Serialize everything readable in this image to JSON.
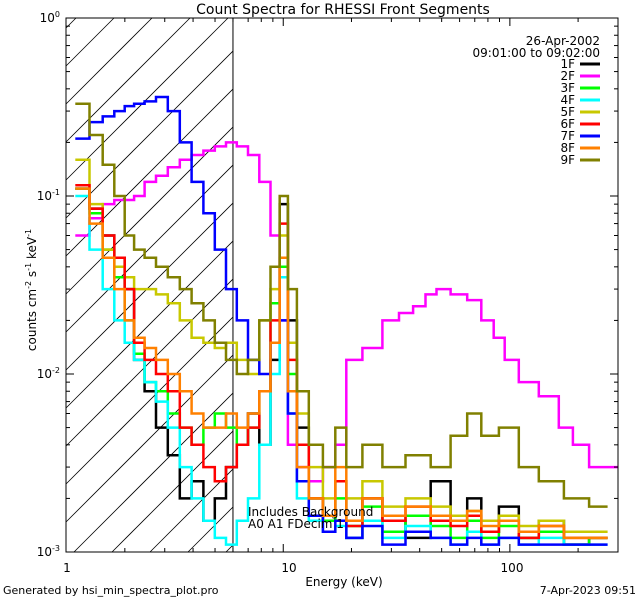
{
  "chart_data": {
    "type": "line",
    "title": "Count Spectra for RHESSI Front Segments",
    "xlabel": "Energy (keV)",
    "ylabel": "counts cm-2 s-1 keV-1",
    "xscale": "log",
    "yscale": "log",
    "xlim": [
      1.1,
      300
    ],
    "ylim": [
      0.001,
      1
    ],
    "x_tick_labels": [
      "1",
      "10",
      "100"
    ],
    "y_tick_labels": [
      "10^-3",
      "10^-2",
      "10^-1",
      "10^0"
    ],
    "date": "26-Apr-2002",
    "time_range": "09:01:00 to 09:02:00",
    "attenuator_boundary_kev": 6,
    "annotation_line1": "Includes Background",
    "annotation_line2": "A0 A1 FDecim 1",
    "series": [
      {
        "name": "1F",
        "color": "#000000",
        "x": [
          1.3,
          1.5,
          1.7,
          1.9,
          2.1,
          2.3,
          2.6,
          2.9,
          3.3,
          3.7,
          4.2,
          4.7,
          5.3,
          5.9,
          6.6,
          7.4,
          8.3,
          9.3,
          10,
          11,
          12,
          14,
          16,
          18,
          20,
          25,
          30,
          40,
          50,
          60,
          70,
          80,
          100,
          120,
          150,
          200,
          250
        ],
        "y": [
          0.11,
          0.085,
          0.06,
          0.045,
          0.03,
          0.012,
          0.008,
          0.005,
          0.0035,
          0.002,
          0.0025,
          0.0015,
          0.002,
          0.003,
          0.004,
          0.006,
          0.004,
          0.012,
          0.09,
          0.02,
          0.005,
          0.002,
          0.0015,
          0.0025,
          0.0012,
          0.002,
          0.0015,
          0.0012,
          0.0025,
          0.0015,
          0.002,
          0.0013,
          0.0018,
          0.0012,
          0.0015,
          0.0011,
          0.0012
        ]
      },
      {
        "name": "2F",
        "color": "#ff00ff",
        "x": [
          1.3,
          1.5,
          1.7,
          1.9,
          2.1,
          2.3,
          2.6,
          2.9,
          3.3,
          3.7,
          4.2,
          4.7,
          5.3,
          5.9,
          6.6,
          7.4,
          8.3,
          9.3,
          10,
          11,
          12,
          14,
          16,
          18,
          20,
          25,
          30,
          35,
          40,
          45,
          50,
          60,
          70,
          80,
          90,
          100,
          120,
          150,
          180,
          200,
          250,
          300
        ],
        "y": [
          0.06,
          0.075,
          0.09,
          0.095,
          0.095,
          0.1,
          0.12,
          0.13,
          0.145,
          0.16,
          0.17,
          0.18,
          0.19,
          0.2,
          0.19,
          0.17,
          0.12,
          0.06,
          0.02,
          0.004,
          0.003,
          0.0025,
          0.003,
          0.004,
          0.012,
          0.014,
          0.02,
          0.022,
          0.024,
          0.028,
          0.03,
          0.028,
          0.026,
          0.02,
          0.016,
          0.012,
          0.009,
          0.0075,
          0.005,
          0.004,
          0.003,
          0.003
        ]
      },
      {
        "name": "3F",
        "color": "#00ff00",
        "x": [
          1.3,
          1.5,
          1.7,
          1.9,
          2.1,
          2.3,
          2.6,
          2.9,
          3.3,
          3.7,
          4.2,
          4.7,
          5.3,
          5.9,
          6.6,
          7.4,
          8.3,
          9.3,
          10,
          11,
          12,
          14,
          16,
          18,
          20,
          25,
          30,
          40,
          50,
          60,
          70,
          80,
          100,
          120,
          150,
          200,
          250
        ],
        "y": [
          0.11,
          0.08,
          0.05,
          0.035,
          0.02,
          0.013,
          0.009,
          0.008,
          0.006,
          0.005,
          0.004,
          0.005,
          0.006,
          0.005,
          0.004,
          0.005,
          0.008,
          0.025,
          0.04,
          0.01,
          0.004,
          0.002,
          0.0015,
          0.002,
          0.0014,
          0.0018,
          0.0013,
          0.0016,
          0.0014,
          0.0012,
          0.0015,
          0.0012,
          0.0014,
          0.0012,
          0.0013,
          0.0011,
          0.0012
        ]
      },
      {
        "name": "4F",
        "color": "#00ffff",
        "x": [
          1.3,
          1.5,
          1.7,
          1.9,
          2.1,
          2.3,
          2.6,
          2.9,
          3.3,
          3.7,
          4.2,
          4.7,
          5.3,
          5.9,
          6.6,
          7.4,
          8.3,
          9.3,
          10,
          11,
          12,
          14,
          16,
          18,
          20,
          25,
          30,
          40,
          50,
          60,
          70,
          80,
          100,
          120,
          150,
          200,
          250
        ],
        "y": [
          0.1,
          0.05,
          0.03,
          0.02,
          0.015,
          0.012,
          0.009,
          0.007,
          0.005,
          0.003,
          0.002,
          0.0015,
          0.0012,
          0.0011,
          0.0015,
          0.002,
          0.004,
          0.01,
          0.035,
          0.006,
          0.002,
          0.0015,
          0.0013,
          0.0014,
          0.0012,
          0.0015,
          0.0012,
          0.0014,
          0.0012,
          0.0011,
          0.0013,
          0.0011,
          0.0012,
          0.0011,
          0.0012,
          0.0011,
          0.0011
        ]
      },
      {
        "name": "5F",
        "color": "#c8c800",
        "x": [
          1.3,
          1.5,
          1.7,
          1.9,
          2.1,
          2.3,
          2.6,
          2.9,
          3.3,
          3.7,
          4.2,
          4.7,
          5.3,
          5.9,
          6.6,
          7.4,
          8.3,
          9.3,
          10,
          11,
          12,
          14,
          16,
          18,
          20,
          25,
          30,
          40,
          50,
          60,
          70,
          80,
          100,
          120,
          150,
          200,
          250
        ],
        "y": [
          0.16,
          0.09,
          0.05,
          0.04,
          0.035,
          0.03,
          0.03,
          0.028,
          0.025,
          0.02,
          0.016,
          0.015,
          0.014,
          0.015,
          0.012,
          0.01,
          0.02,
          0.03,
          0.06,
          0.015,
          0.006,
          0.003,
          0.002,
          0.0025,
          0.002,
          0.0025,
          0.0018,
          0.002,
          0.0018,
          0.0016,
          0.0017,
          0.0015,
          0.0016,
          0.0014,
          0.0015,
          0.0013,
          0.0013
        ]
      },
      {
        "name": "6F",
        "color": "#ff0000",
        "x": [
          1.3,
          1.5,
          1.7,
          1.9,
          2.1,
          2.3,
          2.6,
          2.9,
          3.3,
          3.7,
          4.2,
          4.7,
          5.3,
          5.9,
          6.6,
          7.4,
          8.3,
          9.3,
          10,
          11,
          12,
          14,
          16,
          18,
          20,
          25,
          30,
          40,
          50,
          60,
          70,
          80,
          100,
          120,
          150,
          200,
          250
        ],
        "y": [
          0.115,
          0.085,
          0.06,
          0.045,
          0.03,
          0.015,
          0.012,
          0.01,
          0.008,
          0.005,
          0.004,
          0.003,
          0.0025,
          0.003,
          0.004,
          0.005,
          0.008,
          0.02,
          0.07,
          0.012,
          0.004,
          0.002,
          0.0016,
          0.0025,
          0.0014,
          0.002,
          0.0015,
          0.0018,
          0.0015,
          0.0014,
          0.0016,
          0.0013,
          0.0015,
          0.0012,
          0.0014,
          0.0012,
          0.0012
        ]
      },
      {
        "name": "7F",
        "color": "#0000ff",
        "x": [
          1.3,
          1.5,
          1.7,
          1.9,
          2.1,
          2.3,
          2.6,
          2.9,
          3.3,
          3.7,
          4.2,
          4.7,
          5.3,
          5.9,
          6.6,
          7.4,
          8.3,
          9.3,
          10,
          11,
          12,
          14,
          16,
          18,
          20,
          25,
          30,
          40,
          50,
          60,
          70,
          80,
          100,
          120,
          150,
          200,
          250
        ],
        "y": [
          0.21,
          0.26,
          0.28,
          0.3,
          0.32,
          0.33,
          0.34,
          0.36,
          0.3,
          0.2,
          0.12,
          0.08,
          0.05,
          0.03,
          0.02,
          0.012,
          0.01,
          0.015,
          0.02,
          0.006,
          0.0025,
          0.0016,
          0.0013,
          0.0015,
          0.0012,
          0.0014,
          0.0011,
          0.0013,
          0.0012,
          0.0011,
          0.0012,
          0.0011,
          0.0012,
          0.0011,
          0.0011,
          0.0011,
          0.0011
        ]
      },
      {
        "name": "8F",
        "color": "#ff8000",
        "x": [
          1.3,
          1.5,
          1.7,
          1.9,
          2.1,
          2.3,
          2.6,
          2.9,
          3.3,
          3.7,
          4.2,
          4.7,
          5.3,
          5.9,
          6.6,
          7.4,
          8.3,
          9.3,
          10,
          11,
          12,
          14,
          16,
          18,
          20,
          25,
          30,
          40,
          50,
          60,
          70,
          80,
          100,
          120,
          150,
          200,
          250
        ],
        "y": [
          0.11,
          0.07,
          0.045,
          0.03,
          0.02,
          0.016,
          0.014,
          0.012,
          0.01,
          0.008,
          0.006,
          0.005,
          0.005,
          0.006,
          0.005,
          0.006,
          0.008,
          0.015,
          0.045,
          0.008,
          0.003,
          0.002,
          0.0016,
          0.003,
          0.0015,
          0.002,
          0.0016,
          0.0018,
          0.0016,
          0.0015,
          0.0017,
          0.0014,
          0.0015,
          0.0013,
          0.0014,
          0.0012,
          0.0012
        ]
      },
      {
        "name": "9F",
        "color": "#808000",
        "x": [
          1.3,
          1.5,
          1.7,
          1.9,
          2.1,
          2.3,
          2.6,
          2.9,
          3.3,
          3.7,
          4.2,
          4.7,
          5.3,
          5.9,
          6.6,
          7.4,
          8.3,
          9.3,
          10,
          11,
          12,
          14,
          16,
          18,
          20,
          25,
          30,
          40,
          50,
          60,
          70,
          80,
          100,
          120,
          150,
          200,
          250
        ],
        "y": [
          0.33,
          0.22,
          0.15,
          0.1,
          0.06,
          0.05,
          0.045,
          0.04,
          0.035,
          0.03,
          0.025,
          0.02,
          0.015,
          0.012,
          0.01,
          0.012,
          0.02,
          0.04,
          0.1,
          0.03,
          0.008,
          0.004,
          0.003,
          0.005,
          0.003,
          0.004,
          0.003,
          0.0035,
          0.003,
          0.0045,
          0.006,
          0.0045,
          0.005,
          0.003,
          0.0025,
          0.002,
          0.0018
        ]
      }
    ]
  },
  "footer": {
    "generator": "Generated by hsi_min_spectra_plot.pro",
    "timestamp": "7-Apr-2023 09:51"
  }
}
